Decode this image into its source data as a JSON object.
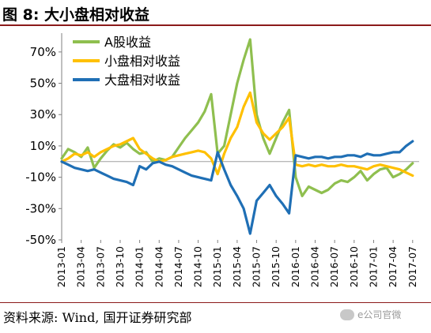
{
  "header": {
    "title": "图 8:  大小盘相对收益"
  },
  "footer": {
    "source": "资料来源:  Wind,  国开证券研究部",
    "watermark": "e公司官微"
  },
  "colors": {
    "a_share": "#8fbf4f",
    "small_cap": "#ffc000",
    "large_cap": "#1f6fb5",
    "rule": "#8b1a1a"
  },
  "chart_data": {
    "type": "line",
    "title": "",
    "xlabel": "",
    "ylabel": "",
    "ylim": [
      -50,
      80
    ],
    "yticks": [
      -50,
      -30,
      -10,
      10,
      30,
      50,
      70
    ],
    "ytick_labels": [
      "-50%",
      "-30%",
      "-10%",
      "10%",
      "30%",
      "50%",
      "70%"
    ],
    "xlim": [
      "2013-01",
      "2017-08"
    ],
    "xtick_labels": [
      "2013-01",
      "2013-04",
      "2013-07",
      "2013-10",
      "2014-01",
      "2014-04",
      "2014-07",
      "2014-10",
      "2015-01",
      "2015-04",
      "2015-07",
      "2015-10",
      "2016-01",
      "2016-04",
      "2016-07",
      "2016-10",
      "2017-01",
      "2017-04",
      "2017-07"
    ],
    "grid": false,
    "legend_position": "top-left",
    "series": [
      {
        "name": "A股收益",
        "color": "#8fbf4f",
        "points": [
          [
            "2013-01",
            2
          ],
          [
            "2013-02",
            8
          ],
          [
            "2013-03",
            6
          ],
          [
            "2013-04",
            3
          ],
          [
            "2013-05",
            9
          ],
          [
            "2013-06",
            -4
          ],
          [
            "2013-07",
            2
          ],
          [
            "2013-08",
            7
          ],
          [
            "2013-09",
            11
          ],
          [
            "2013-10",
            9
          ],
          [
            "2013-11",
            12
          ],
          [
            "2013-12",
            8
          ],
          [
            "2014-01",
            5
          ],
          [
            "2014-02",
            6
          ],
          [
            "2014-03",
            0
          ],
          [
            "2014-04",
            2
          ],
          [
            "2014-05",
            1
          ],
          [
            "2014-06",
            3
          ],
          [
            "2014-07",
            9
          ],
          [
            "2014-08",
            15
          ],
          [
            "2014-09",
            20
          ],
          [
            "2014-10",
            25
          ],
          [
            "2014-11",
            32
          ],
          [
            "2014-12",
            43
          ],
          [
            "2015-01",
            5
          ],
          [
            "2015-02",
            10
          ],
          [
            "2015-03",
            30
          ],
          [
            "2015-04",
            50
          ],
          [
            "2015-05",
            65
          ],
          [
            "2015-06",
            78
          ],
          [
            "2015-07",
            30
          ],
          [
            "2015-08",
            15
          ],
          [
            "2015-09",
            5
          ],
          [
            "2015-10",
            15
          ],
          [
            "2015-11",
            25
          ],
          [
            "2015-12",
            33
          ],
          [
            "2016-01",
            -10
          ],
          [
            "2016-02",
            -22
          ],
          [
            "2016-03",
            -16
          ],
          [
            "2016-04",
            -18
          ],
          [
            "2016-05",
            -20
          ],
          [
            "2016-06",
            -18
          ],
          [
            "2016-07",
            -14
          ],
          [
            "2016-08",
            -12
          ],
          [
            "2016-09",
            -13
          ],
          [
            "2016-10",
            -10
          ],
          [
            "2016-11",
            -6
          ],
          [
            "2016-12",
            -12
          ],
          [
            "2017-01",
            -8
          ],
          [
            "2017-02",
            -5
          ],
          [
            "2017-03",
            -4
          ],
          [
            "2017-04",
            -10
          ],
          [
            "2017-05",
            -8
          ],
          [
            "2017-06",
            -5
          ],
          [
            "2017-07",
            -1
          ]
        ]
      },
      {
        "name": "小盘相对收益",
        "color": "#ffc000",
        "points": [
          [
            "2013-01",
            0
          ],
          [
            "2013-02",
            2
          ],
          [
            "2013-03",
            5
          ],
          [
            "2013-04",
            4
          ],
          [
            "2013-05",
            6
          ],
          [
            "2013-06",
            3
          ],
          [
            "2013-07",
            6
          ],
          [
            "2013-08",
            8
          ],
          [
            "2013-09",
            10
          ],
          [
            "2013-10",
            11
          ],
          [
            "2013-11",
            13
          ],
          [
            "2013-12",
            15
          ],
          [
            "2014-01",
            8
          ],
          [
            "2014-02",
            5
          ],
          [
            "2014-03",
            2
          ],
          [
            "2014-04",
            0
          ],
          [
            "2014-05",
            1
          ],
          [
            "2014-06",
            3
          ],
          [
            "2014-07",
            4
          ],
          [
            "2014-08",
            5
          ],
          [
            "2014-09",
            6
          ],
          [
            "2014-10",
            7
          ],
          [
            "2014-11",
            6
          ],
          [
            "2014-12",
            2
          ],
          [
            "2015-01",
            -8
          ],
          [
            "2015-02",
            5
          ],
          [
            "2015-03",
            15
          ],
          [
            "2015-04",
            22
          ],
          [
            "2015-05",
            35
          ],
          [
            "2015-06",
            44
          ],
          [
            "2015-07",
            25
          ],
          [
            "2015-08",
            18
          ],
          [
            "2015-09",
            14
          ],
          [
            "2015-10",
            18
          ],
          [
            "2015-11",
            22
          ],
          [
            "2015-12",
            28
          ],
          [
            "2016-01",
            -2
          ],
          [
            "2016-02",
            -3
          ],
          [
            "2016-03",
            -2
          ],
          [
            "2016-04",
            -3
          ],
          [
            "2016-05",
            -2
          ],
          [
            "2016-06",
            -3
          ],
          [
            "2016-07",
            -3
          ],
          [
            "2016-08",
            -2
          ],
          [
            "2016-09",
            -3
          ],
          [
            "2016-10",
            -3
          ],
          [
            "2016-11",
            -4
          ],
          [
            "2016-12",
            -5
          ],
          [
            "2017-01",
            -3
          ],
          [
            "2017-02",
            -2
          ],
          [
            "2017-03",
            -3
          ],
          [
            "2017-04",
            -4
          ],
          [
            "2017-05",
            -5
          ],
          [
            "2017-06",
            -7
          ],
          [
            "2017-07",
            -9
          ]
        ]
      },
      {
        "name": "大盘相对收益",
        "color": "#1f6fb5",
        "points": [
          [
            "2013-01",
            0
          ],
          [
            "2013-02",
            -2
          ],
          [
            "2013-03",
            -4
          ],
          [
            "2013-04",
            -5
          ],
          [
            "2013-05",
            -6
          ],
          [
            "2013-06",
            -5
          ],
          [
            "2013-07",
            -7
          ],
          [
            "2013-08",
            -9
          ],
          [
            "2013-09",
            -11
          ],
          [
            "2013-10",
            -12
          ],
          [
            "2013-11",
            -13
          ],
          [
            "2013-12",
            -15
          ],
          [
            "2014-01",
            -3
          ],
          [
            "2014-02",
            -5
          ],
          [
            "2014-03",
            -1
          ],
          [
            "2014-04",
            0
          ],
          [
            "2014-05",
            -2
          ],
          [
            "2014-06",
            -3
          ],
          [
            "2014-07",
            -5
          ],
          [
            "2014-08",
            -7
          ],
          [
            "2014-09",
            -9
          ],
          [
            "2014-10",
            -10
          ],
          [
            "2014-11",
            -11
          ],
          [
            "2014-12",
            -12
          ],
          [
            "2015-01",
            6
          ],
          [
            "2015-02",
            -5
          ],
          [
            "2015-03",
            -15
          ],
          [
            "2015-04",
            -22
          ],
          [
            "2015-05",
            -30
          ],
          [
            "2015-06",
            -46
          ],
          [
            "2015-07",
            -25
          ],
          [
            "2015-08",
            -20
          ],
          [
            "2015-09",
            -15
          ],
          [
            "2015-10",
            -22
          ],
          [
            "2015-11",
            -27
          ],
          [
            "2015-12",
            -33
          ],
          [
            "2016-01",
            4
          ],
          [
            "2016-02",
            3
          ],
          [
            "2016-03",
            2
          ],
          [
            "2016-04",
            3
          ],
          [
            "2016-05",
            3
          ],
          [
            "2016-06",
            2
          ],
          [
            "2016-07",
            3
          ],
          [
            "2016-08",
            3
          ],
          [
            "2016-09",
            4
          ],
          [
            "2016-10",
            4
          ],
          [
            "2016-11",
            3
          ],
          [
            "2016-12",
            5
          ],
          [
            "2017-01",
            4
          ],
          [
            "2017-02",
            4
          ],
          [
            "2017-03",
            5
          ],
          [
            "2017-04",
            6
          ],
          [
            "2017-05",
            6
          ],
          [
            "2017-06",
            10
          ],
          [
            "2017-07",
            13
          ]
        ]
      }
    ]
  }
}
